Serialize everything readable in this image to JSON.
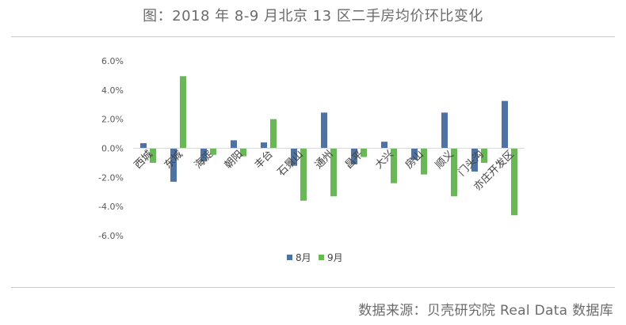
{
  "title": "图：2018 年 8-9 月北京 13 区二手房均价环比变化",
  "source": "数据来源：贝壳研究院 Real Data 数据库",
  "chart_data": {
    "type": "bar",
    "title": "图：2018 年 8-9 月北京 13 区二手房均价环比变化",
    "categories": [
      "西城",
      "东城",
      "海淀",
      "朝阳",
      "丰台",
      "石景山",
      "通州",
      "昌平",
      "大兴",
      "房山",
      "顺义",
      "门头沟",
      "亦庄开发区"
    ],
    "series": [
      {
        "name": "8月",
        "color": "#4e73a3",
        "values": [
          0.35,
          -2.3,
          -0.9,
          0.55,
          0.4,
          -1.2,
          2.45,
          -1.1,
          0.45,
          -0.8,
          2.45,
          -1.6,
          3.25
        ]
      },
      {
        "name": "9月",
        "color": "#6ab758",
        "values": [
          -1.0,
          4.95,
          -0.45,
          -0.55,
          2.0,
          -3.6,
          -3.3,
          -0.6,
          -2.4,
          -1.8,
          -3.3,
          -1.0,
          -4.6
        ]
      }
    ],
    "yticks": [
      "-6.0%",
      "-4.0%",
      "-2.0%",
      "0.0%",
      "2.0%",
      "4.0%",
      "6.0%"
    ],
    "ylim": [
      -6,
      6
    ],
    "legend_position": "bottom",
    "grid": false
  }
}
